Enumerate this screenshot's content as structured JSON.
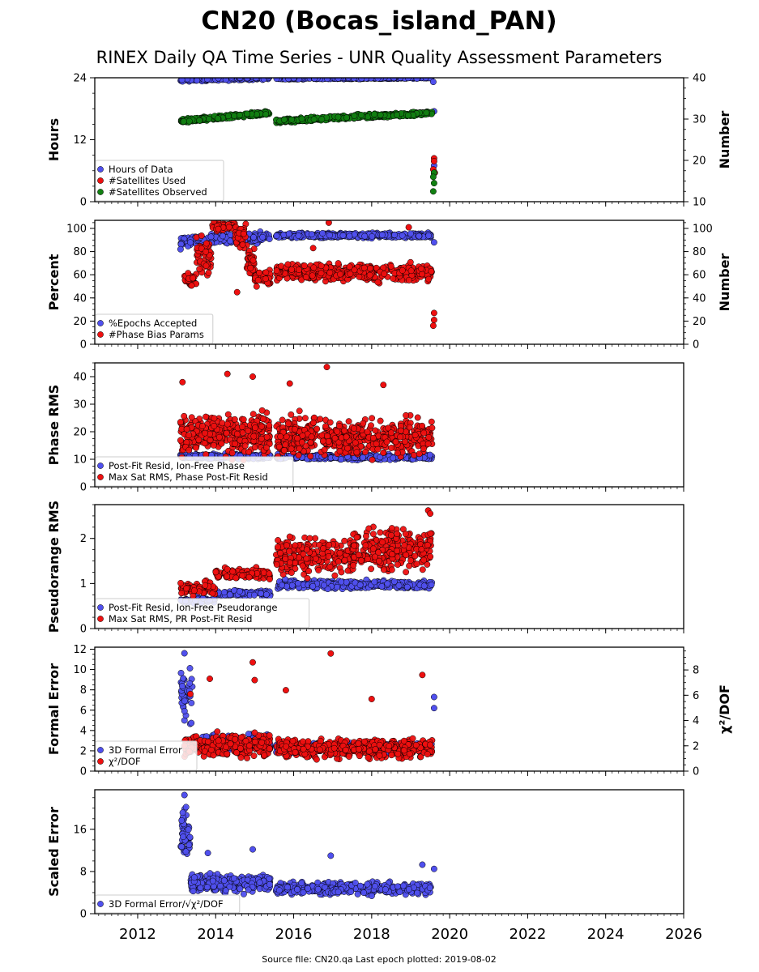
{
  "title": "CN20 (Bocas_island_PAN)",
  "subtitle": "RINEX Daily QA Time Series - UNR Quality Assessment Parameters",
  "footer": "Source file: CN20.qa Last epoch plotted: 2019-08-02",
  "colors": {
    "blue": "#5050ee",
    "red": "#ee1010",
    "green": "#128012"
  },
  "chart_data": [
    {
      "type": "scatter",
      "ylabel": "Hours",
      "ylabel_right": "Number",
      "ylim": [
        0,
        24
      ],
      "yticks": [
        0,
        12,
        24
      ],
      "ylim_right": [
        10,
        40
      ],
      "yticks_right": [
        10,
        20,
        30,
        40
      ],
      "series": [
        {
          "name": "Hours of Data",
          "color": "blue",
          "axis": "left",
          "segments": [
            {
              "x": [
                2013.1,
                2015.4
              ],
              "y": [
                23.6,
                24.0
              ],
              "jitter": 0.25,
              "n": 230
            },
            {
              "x": [
                2015.55,
                2019.55
              ],
              "y": [
                23.8,
                24.0
              ],
              "jitter": 0.1,
              "n": 320
            }
          ],
          "points": [
            [
              2019.58,
              23.2
            ],
            [
              2019.6,
              7.0
            ],
            [
              2019.6,
              17.5
            ],
            [
              2019.6,
              5.5
            ]
          ]
        },
        {
          "name": "#Satellites Used",
          "color": "red",
          "axis": "right",
          "segments": [],
          "points": [
            [
              2015.35,
              31.5
            ],
            [
              2019.6,
              20.5
            ],
            [
              2019.6,
              19.8
            ],
            [
              2019.58,
              17.8
            ],
            [
              2019.62,
              17.0
            ]
          ]
        },
        {
          "name": "#Satellites Observed",
          "color": "green",
          "axis": "right",
          "segments": [
            {
              "x": [
                2013.1,
                2015.4
              ],
              "y": [
                29.5,
                31.5
              ],
              "jitter": 0.4,
              "n": 260
            },
            {
              "x": [
                2015.55,
                2019.55
              ],
              "y": [
                29.5,
                31.5
              ],
              "jitter": 0.4,
              "n": 380
            }
          ],
          "points": [
            [
              2019.6,
              17.0
            ],
            [
              2019.58,
              16.0
            ],
            [
              2019.6,
              14.5
            ],
            [
              2019.58,
              12.5
            ]
          ]
        }
      ]
    },
    {
      "type": "scatter",
      "ylabel": "Percent",
      "ylabel_right": "Number",
      "ylim": [
        0,
        107
      ],
      "yticks": [
        0,
        20,
        40,
        60,
        80,
        100
      ],
      "ylim_right": [
        0,
        107
      ],
      "yticks_right": [
        0,
        20,
        40,
        60,
        80,
        100
      ],
      "series": [
        {
          "name": "%Epochs Accepted",
          "color": "blue",
          "axis": "left",
          "segments": [
            {
              "x": [
                2013.1,
                2015.4
              ],
              "y": [
                89,
                93
              ],
              "jitter": 3.5,
              "n": 260
            },
            {
              "x": [
                2015.55,
                2019.55
              ],
              "y": [
                94,
                94
              ],
              "jitter": 1.6,
              "n": 380
            }
          ],
          "points": [
            [
              2013.1,
              82
            ],
            [
              2019.6,
              88
            ]
          ]
        },
        {
          "name": "#Phase Bias Params",
          "color": "red",
          "axis": "right",
          "segments": [
            {
              "x": [
                2013.2,
                2013.5
              ],
              "y": [
                55,
                55
              ],
              "jitter": 5,
              "n": 40
            },
            {
              "x": [
                2013.5,
                2013.9
              ],
              "y": [
                75,
                75
              ],
              "jitter": 12,
              "n": 50
            },
            {
              "x": [
                2013.9,
                2014.5
              ],
              "y": [
                102,
                102
              ],
              "jitter": 3,
              "n": 50
            },
            {
              "x": [
                2014.5,
                2014.8
              ],
              "y": [
                92,
                92
              ],
              "jitter": 8,
              "n": 30
            },
            {
              "x": [
                2014.8,
                2015.0
              ],
              "y": [
                70,
                70
              ],
              "jitter": 12,
              "n": 40
            },
            {
              "x": [
                2015.0,
                2015.4
              ],
              "y": [
                57,
                57
              ],
              "jitter": 5,
              "n": 40
            },
            {
              "x": [
                2015.55,
                2019.55
              ],
              "y": [
                62,
                62
              ],
              "jitter": 6,
              "n": 380
            }
          ],
          "points": [
            [
              2014.55,
              45
            ],
            [
              2016.9,
              105
            ],
            [
              2018.95,
              101
            ],
            [
              2016.5,
              83
            ],
            [
              2019.6,
              27
            ],
            [
              2019.6,
              21
            ],
            [
              2019.58,
              16
            ]
          ]
        }
      ]
    },
    {
      "type": "scatter",
      "ylabel": "Phase RMS",
      "ylim": [
        0,
        45
      ],
      "yticks": [
        0,
        10,
        20,
        30,
        40
      ],
      "series": [
        {
          "name": "Post-Fit Resid, Ion-Free Phase",
          "color": "blue",
          "axis": "left",
          "segments": [
            {
              "x": [
                2013.1,
                2015.4
              ],
              "y": [
                11,
                11
              ],
              "jitter": 0.7,
              "n": 220
            },
            {
              "x": [
                2015.55,
                2019.55
              ],
              "y": [
                10.8,
                10.8
              ],
              "jitter": 0.7,
              "n": 360
            }
          ],
          "points": []
        },
        {
          "name": "Max Sat RMS, Phase Post-Fit Resid",
          "color": "red",
          "axis": "left",
          "segments": [
            {
              "x": [
                2013.1,
                2015.4
              ],
              "y": [
                19,
                19
              ],
              "jitter": 5.5,
              "n": 300
            },
            {
              "x": [
                2015.55,
                2019.55
              ],
              "y": [
                18,
                18
              ],
              "jitter": 5.5,
              "n": 480
            }
          ],
          "points": [
            [
              2013.15,
              38
            ],
            [
              2014.3,
              41
            ],
            [
              2014.95,
              40
            ],
            [
              2016.85,
              43.5
            ],
            [
              2018.3,
              37
            ],
            [
              2015.9,
              37.5
            ]
          ]
        }
      ]
    },
    {
      "type": "scatter",
      "ylabel": "Pseudorange RMS",
      "ylim": [
        0,
        2.75
      ],
      "yticks": [
        0,
        1,
        2
      ],
      "series": [
        {
          "name": "Post-Fit Resid, Ion-Free Pseudorange",
          "color": "blue",
          "axis": "left",
          "segments": [
            {
              "x": [
                2013.1,
                2014.0
              ],
              "y": [
                0.62,
                0.62
              ],
              "jitter": 0.05,
              "n": 70
            },
            {
              "x": [
                2014.0,
                2015.4
              ],
              "y": [
                0.78,
                0.78
              ],
              "jitter": 0.05,
              "n": 100
            },
            {
              "x": [
                2015.55,
                2019.55
              ],
              "y": [
                0.98,
                0.98
              ],
              "jitter": 0.07,
              "n": 360
            }
          ],
          "points": []
        },
        {
          "name": "Max Sat RMS, PR Post-Fit Resid",
          "color": "red",
          "axis": "left",
          "segments": [
            {
              "x": [
                2013.1,
                2014.0
              ],
              "y": [
                0.9,
                0.9
              ],
              "jitter": 0.12,
              "n": 80
            },
            {
              "x": [
                2014.0,
                2015.4
              ],
              "y": [
                1.2,
                1.2
              ],
              "jitter": 0.1,
              "n": 110
            },
            {
              "x": [
                2015.55,
                2017.5
              ],
              "y": [
                1.6,
                1.6
              ],
              "jitter": 0.3,
              "n": 220
            },
            {
              "x": [
                2017.5,
                2019.55
              ],
              "y": [
                1.75,
                1.75
              ],
              "jitter": 0.35,
              "n": 240
            }
          ],
          "points": [
            [
              2019.45,
              2.62
            ],
            [
              2019.5,
              2.55
            ]
          ]
        }
      ]
    },
    {
      "type": "scatter",
      "ylabel": "Formal Error",
      "ylabel_right": "χ²/DOF",
      "ylim": [
        0,
        12.2
      ],
      "yticks": [
        0,
        2,
        4,
        6,
        8,
        10,
        12
      ],
      "ylim_right": [
        0,
        9.8
      ],
      "yticks_right": [
        0,
        2,
        4,
        6,
        8
      ],
      "series": [
        {
          "name": "3D Formal Error",
          "color": "blue",
          "axis": "left",
          "segments": [
            {
              "x": [
                2013.1,
                2013.4
              ],
              "y": [
                7.5,
                7.5
              ],
              "jitter": 2.5,
              "n": 40
            },
            {
              "x": [
                2013.4,
                2015.4
              ],
              "y": [
                2.8,
                2.8
              ],
              "jitter": 0.6,
              "n": 220
            },
            {
              "x": [
                2015.55,
                2019.55
              ],
              "y": [
                2.3,
                2.3
              ],
              "jitter": 0.4,
              "n": 360
            }
          ],
          "points": [
            [
              2013.2,
              11.6
            ],
            [
              2019.6,
              7.3
            ],
            [
              2019.6,
              6.2
            ]
          ]
        },
        {
          "name": "χ²/DOF",
          "color": "red",
          "axis": "right",
          "segments": [
            {
              "x": [
                2013.2,
                2015.4
              ],
              "y": [
                2.0,
                2.0
              ],
              "jitter": 0.7,
              "n": 260
            },
            {
              "x": [
                2015.55,
                2019.55
              ],
              "y": [
                1.8,
                1.8
              ],
              "jitter": 0.6,
              "n": 400
            }
          ],
          "points": [
            [
              2013.85,
              7.3
            ],
            [
              2014.95,
              8.6
            ],
            [
              2015.0,
              7.2
            ],
            [
              2016.95,
              9.3
            ],
            [
              2019.3,
              7.6
            ],
            [
              2015.8,
              6.4
            ],
            [
              2018.0,
              5.7
            ],
            [
              2013.35,
              6.1
            ]
          ]
        }
      ]
    },
    {
      "type": "scatter",
      "ylabel": "Scaled Error",
      "ylim": [
        0,
        23.5
      ],
      "yticks": [
        0,
        8,
        16
      ],
      "series": [
        {
          "name": "3D Formal Error/√χ²/DOF",
          "color": "blue",
          "axis": "left",
          "segments": [
            {
              "x": [
                2013.1,
                2013.35
              ],
              "y": [
                15,
                15
              ],
              "jitter": 3.5,
              "n": 50
            },
            {
              "x": [
                2013.35,
                2015.4
              ],
              "y": [
                5.8,
                5.8
              ],
              "jitter": 1.3,
              "n": 260
            },
            {
              "x": [
                2015.55,
                2019.55
              ],
              "y": [
                4.8,
                4.8
              ],
              "jitter": 0.9,
              "n": 380
            }
          ],
          "points": [
            [
              2013.2,
              22.5
            ],
            [
              2014.95,
              12.2
            ],
            [
              2016.95,
              11.0
            ],
            [
              2013.8,
              11.5
            ],
            [
              2019.3,
              9.3
            ],
            [
              2019.6,
              8.5
            ]
          ]
        }
      ]
    }
  ],
  "x_axis": {
    "xlim": [
      2010.9,
      2026.0
    ],
    "ticks": [
      2012,
      2014,
      2016,
      2018,
      2020,
      2022,
      2024,
      2026
    ]
  }
}
